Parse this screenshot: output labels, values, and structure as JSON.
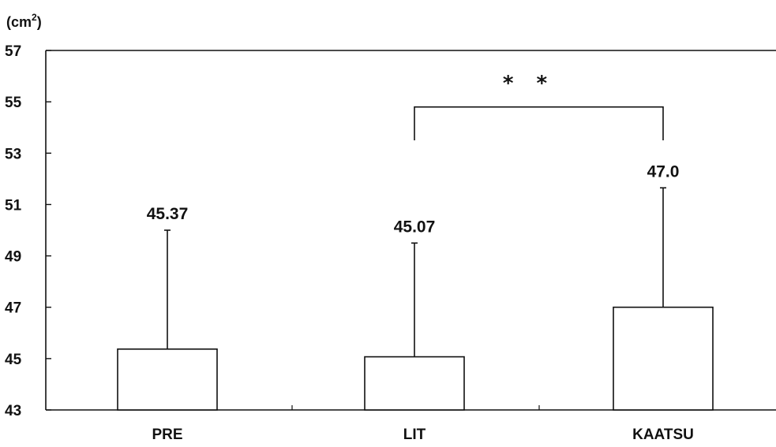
{
  "chart_data": {
    "type": "bar",
    "y_unit_base": "(cm",
    "y_unit_sup": "2",
    "y_unit_close": ")",
    "categories": [
      "PRE",
      "LIT",
      "KAATSU"
    ],
    "values": [
      45.37,
      45.07,
      47.0
    ],
    "value_labels": [
      "45.37",
      "45.07",
      "47.0"
    ],
    "error_upper": [
      50.0,
      49.5,
      51.65
    ],
    "ylim": [
      43,
      57
    ],
    "yticks": [
      43,
      45,
      47,
      49,
      51,
      53,
      55,
      57
    ],
    "ytick_labels": [
      "43",
      "45",
      "47",
      "49",
      "51",
      "53",
      "55",
      "57"
    ],
    "significance": {
      "label": "* *",
      "from_category": "LIT",
      "to_category": "KAATSU",
      "bracket_y": 54.8,
      "bracket_drop_y": 53.5
    },
    "bar_fill": "#ffffff",
    "line_color": "#111111",
    "grid": false
  }
}
